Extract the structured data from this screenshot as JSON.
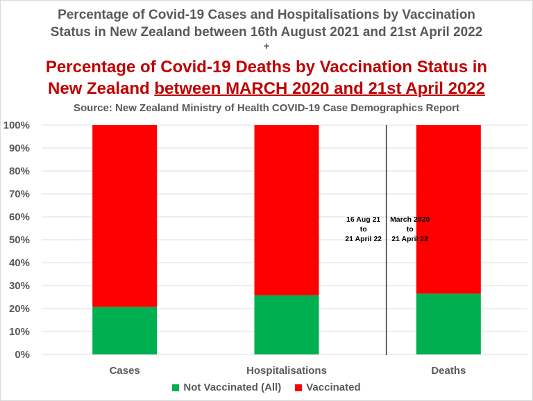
{
  "chart_data": {
    "type": "bar",
    "stacked": true,
    "percent": true,
    "title_lines": [
      "Percentage of Covid-19 Cases and Hospitalisations by Vaccination",
      "Status in New Zealand between 16th August 2021 and 21st April 2022",
      "+",
      "Percentage of Covid-19 Deaths by Vaccination Status in",
      "New Zealand ",
      "between MARCH 2020 and 21st April 2022"
    ],
    "subtitle": "Source: New Zealand Ministry of Health COVID-19 Case Demographics Report",
    "categories": [
      "Cases",
      "Hospitalisations",
      "Deaths"
    ],
    "series": [
      {
        "name": "Not Vaccinated (All)",
        "color": "#00b050",
        "values": [
          20.7,
          25.8,
          26.5
        ]
      },
      {
        "name": "Vaccinated",
        "color": "#ff0000",
        "values": [
          79.3,
          74.2,
          73.5
        ]
      }
    ],
    "ylim": [
      0,
      100
    ],
    "yticks": [
      "0%",
      "10%",
      "20%",
      "30%",
      "40%",
      "50%",
      "60%",
      "70%",
      "80%",
      "90%",
      "100%"
    ],
    "grid": true,
    "legend": "bottom",
    "annotations": [
      {
        "lines": [
          "16 Aug 21",
          "to",
          "21 April 22"
        ],
        "position": "left-of-divider"
      },
      {
        "lines": [
          "March 2020",
          "to",
          "21 April 22"
        ],
        "position": "right-of-divider"
      }
    ],
    "divider": "between Hospitalisations and Deaths"
  }
}
